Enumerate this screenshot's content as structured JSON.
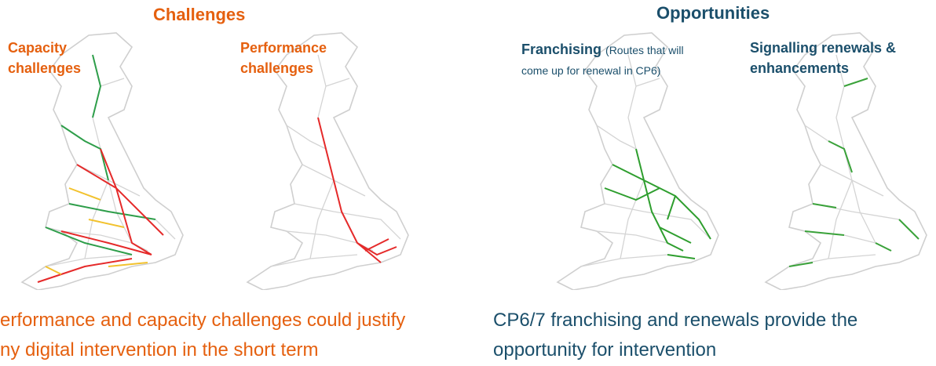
{
  "left": {
    "title": "Challenges",
    "maps": [
      {
        "label_lines": [
          "Capacity",
          "challenges"
        ]
      },
      {
        "label_lines": [
          "Performance",
          "challenges"
        ]
      }
    ],
    "caption_lines": [
      "erformance and capacity challenges could justify",
      "ny digital intervention in the short term"
    ]
  },
  "right": {
    "title": "Opportunities",
    "maps": [
      {
        "label_bold": "Franchising",
        "label_rest_lines": [
          "(Routes that will",
          "come up for renewal in CP6)"
        ]
      },
      {
        "label_lines": [
          "Signalling renewals &",
          "enhancements"
        ]
      }
    ],
    "caption_lines": [
      "CP6/7 franchising and renewals provide the",
      "opportunity for intervention"
    ]
  }
}
